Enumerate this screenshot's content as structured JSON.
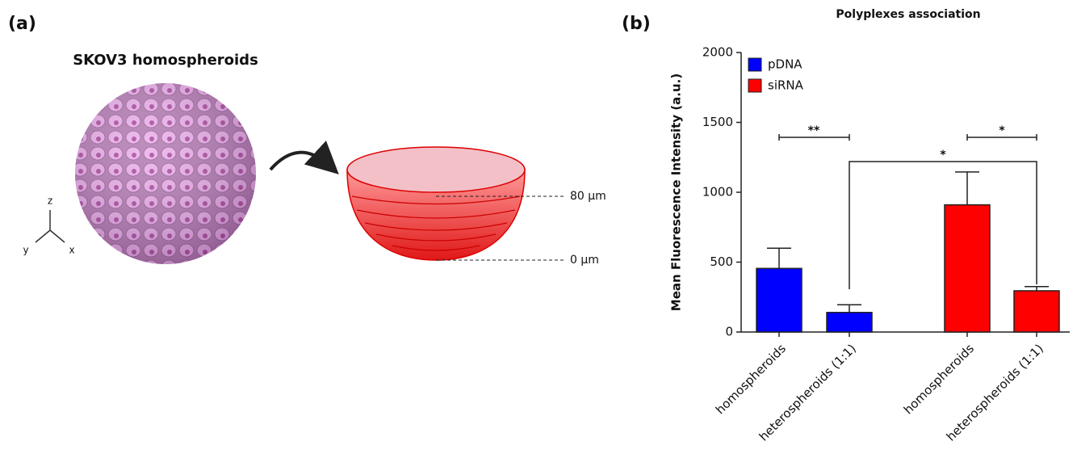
{
  "panel_a": {
    "label": "(a)",
    "title": "SKOV3 homospheroids",
    "axes": [
      "z",
      "y",
      "x"
    ],
    "levels": [
      "80 µm",
      "0 µm"
    ]
  },
  "panel_b": {
    "label": "(b)"
  },
  "chart_data": {
    "type": "bar",
    "title": "Polyplexes association",
    "y_label": "Mean Fluorescence Intensity (a.u.)",
    "categories": [
      "homospheroids",
      "heterospheroids (1:1)",
      "homospheroids",
      "heterospheroids (1:1)"
    ],
    "series": [
      {
        "name": "pDNA",
        "color": "#0000ff",
        "values": [
          455,
          140,
          null,
          null
        ],
        "errors": [
          145,
          55,
          null,
          null
        ]
      },
      {
        "name": "siRNA",
        "color": "#ff0000",
        "values": [
          null,
          null,
          910,
          295
        ],
        "errors": [
          null,
          null,
          235,
          30
        ]
      }
    ],
    "ylim": [
      0,
      2000
    ],
    "yticks": [
      0,
      500,
      1000,
      1500,
      2000
    ],
    "legend": "upper-left",
    "annotations": [
      "**",
      "*",
      "*"
    ]
  }
}
